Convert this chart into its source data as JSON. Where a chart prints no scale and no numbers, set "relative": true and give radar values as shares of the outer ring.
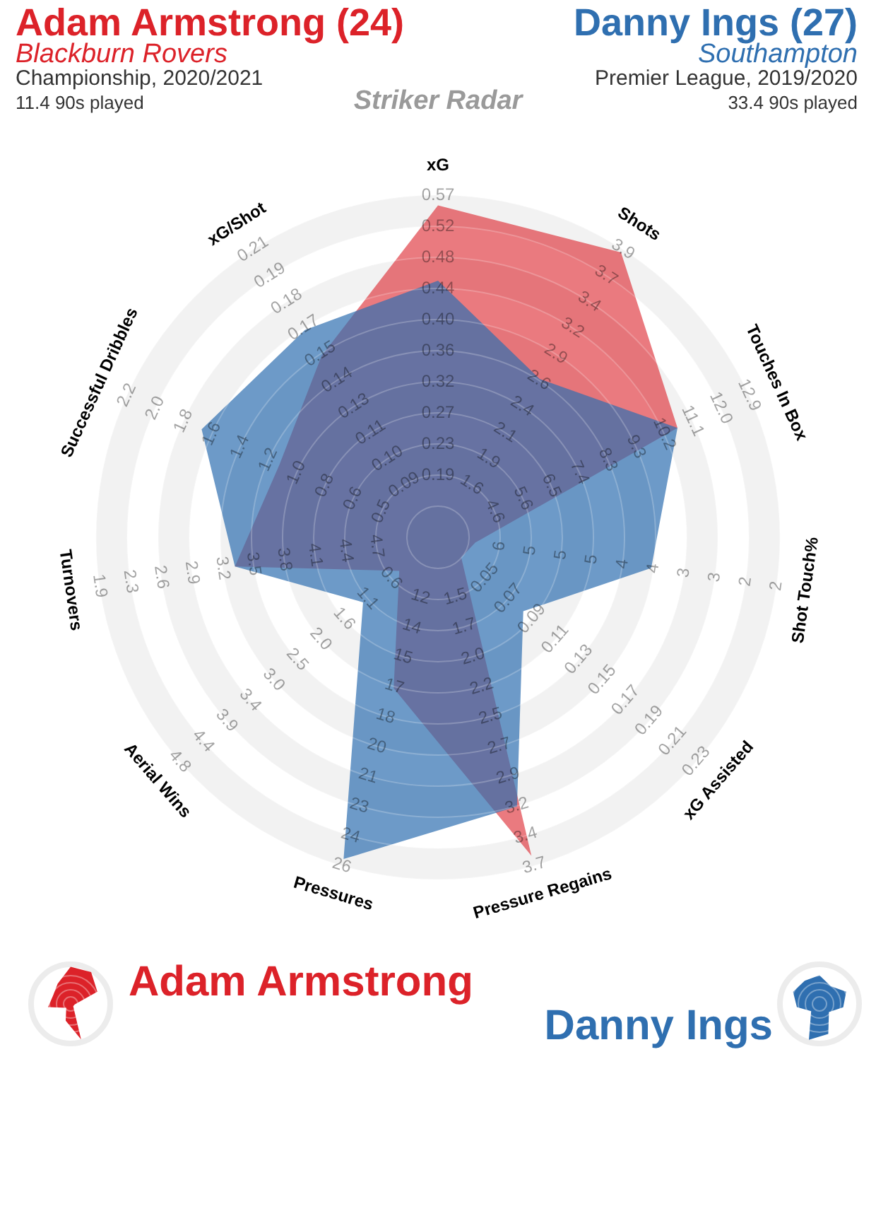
{
  "chart_data": {
    "type": "radar",
    "title": "Striker Radar",
    "relative": true,
    "grid": true,
    "legend": "bottom",
    "categories": [
      "xG",
      "Shots",
      "Touches In Box",
      "Shot Touch%",
      "xG Assisted",
      "Pressure Regains",
      "Pressures",
      "Aerial Wins",
      "Turnovers",
      "Successful Dribbles",
      "xG/Shot"
    ],
    "series": [
      {
        "name": "Adam Armstrong",
        "color": "#dc2229",
        "values": [
          0.97,
          0.99,
          0.77,
          0.11,
          0.09,
          0.97,
          0.46,
          0.15,
          0.6,
          0.51,
          0.63
        ]
      },
      {
        "name": "Danny Ings",
        "color": "#2f6fb0",
        "values": [
          0.75,
          0.55,
          0.77,
          0.63,
          0.33,
          0.82,
          0.98,
          0.29,
          0.6,
          0.76,
          0.72
        ]
      }
    ],
    "annotations": [
      "Adam Armstrong (24)",
      "Blackburn Rovers",
      "Championship, 2020/2021",
      "11.4 90s played",
      "Danny Ings (27)",
      "Southampton",
      "Premier League, 2019/2020",
      "33.4 90s played",
      {
        "text": "0.19",
        "x": "xG"
      },
      {
        "text": "0.23",
        "x": "xG"
      },
      {
        "text": "0.27",
        "x": "xG"
      },
      {
        "text": "0.32",
        "x": "xG"
      },
      {
        "text": "0.36",
        "x": "xG"
      },
      {
        "text": "0.40",
        "x": "xG"
      },
      {
        "text": "0.44",
        "x": "xG"
      },
      {
        "text": "0.48",
        "x": "xG"
      },
      {
        "text": "0.52",
        "x": "xG"
      },
      {
        "text": "0.57",
        "x": "xG"
      },
      {
        "text": "1.6",
        "x": "Shots"
      },
      {
        "text": "1.9",
        "x": "Shots"
      },
      {
        "text": "2.1",
        "x": "Shots"
      },
      {
        "text": "2.4",
        "x": "Shots"
      },
      {
        "text": "2.6",
        "x": "Shots"
      },
      {
        "text": "2.9",
        "x": "Shots"
      },
      {
        "text": "3.2",
        "x": "Shots"
      },
      {
        "text": "3.4",
        "x": "Shots"
      },
      {
        "text": "3.7",
        "x": "Shots"
      },
      {
        "text": "3.9",
        "x": "Shots"
      },
      {
        "text": "4.6",
        "x": "Touches In Box"
      },
      {
        "text": "5.6",
        "x": "Touches In Box"
      },
      {
        "text": "6.5",
        "x": "Touches In Box"
      },
      {
        "text": "7.4",
        "x": "Touches In Box"
      },
      {
        "text": "8.3",
        "x": "Touches In Box"
      },
      {
        "text": "9.3",
        "x": "Touches In Box"
      },
      {
        "text": "10.2",
        "x": "Touches In Box"
      },
      {
        "text": "11.1",
        "x": "Touches In Box"
      },
      {
        "text": "12.0",
        "x": "Touches In Box"
      },
      {
        "text": "12.9",
        "x": "Touches In Box"
      },
      {
        "text": "6",
        "x": "Shot Touch%"
      },
      {
        "text": "5",
        "x": "Shot Touch%"
      },
      {
        "text": "5",
        "x": "Shot Touch%"
      },
      {
        "text": "5",
        "x": "Shot Touch%"
      },
      {
        "text": "4",
        "x": "Shot Touch%"
      },
      {
        "text": "4",
        "x": "Shot Touch%"
      },
      {
        "text": "3",
        "x": "Shot Touch%"
      },
      {
        "text": "3",
        "x": "Shot Touch%"
      },
      {
        "text": "2",
        "x": "Shot Touch%"
      },
      {
        "text": "2",
        "x": "Shot Touch%"
      },
      {
        "text": "0.05",
        "x": "xG Assisted"
      },
      {
        "text": "0.07",
        "x": "xG Assisted"
      },
      {
        "text": "0.09",
        "x": "xG Assisted"
      },
      {
        "text": "0.11",
        "x": "xG Assisted"
      },
      {
        "text": "0.13",
        "x": "xG Assisted"
      },
      {
        "text": "0.15",
        "x": "xG Assisted"
      },
      {
        "text": "0.17",
        "x": "xG Assisted"
      },
      {
        "text": "0.19",
        "x": "xG Assisted"
      },
      {
        "text": "0.21",
        "x": "xG Assisted"
      },
      {
        "text": "0.23",
        "x": "xG Assisted"
      },
      {
        "text": "1.5",
        "x": "Pressure Regains"
      },
      {
        "text": "1.7",
        "x": "Pressure Regains"
      },
      {
        "text": "2.0",
        "x": "Pressure Regains"
      },
      {
        "text": "2.2",
        "x": "Pressure Regains"
      },
      {
        "text": "2.5",
        "x": "Pressure Regains"
      },
      {
        "text": "2.7",
        "x": "Pressure Regains"
      },
      {
        "text": "2.9",
        "x": "Pressure Regains"
      },
      {
        "text": "3.2",
        "x": "Pressure Regains"
      },
      {
        "text": "3.4",
        "x": "Pressure Regains"
      },
      {
        "text": "3.7",
        "x": "Pressure Regains"
      },
      {
        "text": "12",
        "x": "Pressures"
      },
      {
        "text": "14",
        "x": "Pressures"
      },
      {
        "text": "15",
        "x": "Pressures"
      },
      {
        "text": "17",
        "x": "Pressures"
      },
      {
        "text": "18",
        "x": "Pressures"
      },
      {
        "text": "20",
        "x": "Pressures"
      },
      {
        "text": "21",
        "x": "Pressures"
      },
      {
        "text": "23",
        "x": "Pressures"
      },
      {
        "text": "24",
        "x": "Pressures"
      },
      {
        "text": "26",
        "x": "Pressures"
      },
      {
        "text": "0.6",
        "x": "Aerial Wins"
      },
      {
        "text": "1.1",
        "x": "Aerial Wins"
      },
      {
        "text": "1.6",
        "x": "Aerial Wins"
      },
      {
        "text": "2.0",
        "x": "Aerial Wins"
      },
      {
        "text": "2.5",
        "x": "Aerial Wins"
      },
      {
        "text": "3.0",
        "x": "Aerial Wins"
      },
      {
        "text": "3.4",
        "x": "Aerial Wins"
      },
      {
        "text": "3.9",
        "x": "Aerial Wins"
      },
      {
        "text": "4.4",
        "x": "Aerial Wins"
      },
      {
        "text": "4.8",
        "x": "Aerial Wins"
      },
      {
        "text": "4.7",
        "x": "Turnovers"
      },
      {
        "text": "4.4",
        "x": "Turnovers"
      },
      {
        "text": "4.1",
        "x": "Turnovers"
      },
      {
        "text": "3.8",
        "x": "Turnovers"
      },
      {
        "text": "3.5",
        "x": "Turnovers"
      },
      {
        "text": "3.2",
        "x": "Turnovers"
      },
      {
        "text": "2.9",
        "x": "Turnovers"
      },
      {
        "text": "2.6",
        "x": "Turnovers"
      },
      {
        "text": "2.3",
        "x": "Turnovers"
      },
      {
        "text": "1.9",
        "x": "Turnovers"
      },
      {
        "text": "0.5",
        "x": "Successful Dribbles"
      },
      {
        "text": "0.6",
        "x": "Successful Dribbles"
      },
      {
        "text": "0.8",
        "x": "Successful Dribbles"
      },
      {
        "text": "1.0",
        "x": "Successful Dribbles"
      },
      {
        "text": "1.2",
        "x": "Successful Dribbles"
      },
      {
        "text": "1.4",
        "x": "Successful Dribbles"
      },
      {
        "text": "1.6",
        "x": "Successful Dribbles"
      },
      {
        "text": "1.8",
        "x": "Successful Dribbles"
      },
      {
        "text": "2.0",
        "x": "Successful Dribbles"
      },
      {
        "text": "2.2",
        "x": "Successful Dribbles"
      },
      {
        "text": "0.09",
        "x": "xG/Shot"
      },
      {
        "text": "0.10",
        "x": "xG/Shot"
      },
      {
        "text": "0.11",
        "x": "xG/Shot"
      },
      {
        "text": "0.13",
        "x": "xG/Shot"
      },
      {
        "text": "0.14",
        "x": "xG/Shot"
      },
      {
        "text": "0.15",
        "x": "xG/Shot"
      },
      {
        "text": "0.17",
        "x": "xG/Shot"
      },
      {
        "text": "0.18",
        "x": "xG/Shot"
      },
      {
        "text": "0.19",
        "x": "xG/Shot"
      },
      {
        "text": "0.21",
        "x": "xG/Shot"
      }
    ]
  }
}
